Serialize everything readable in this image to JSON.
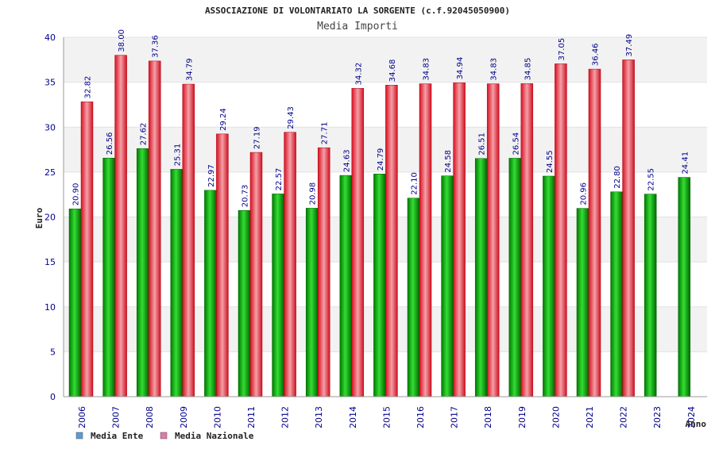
{
  "chart_data": {
    "type": "bar",
    "title": "ASSOCIAZIONE DI VOLONTARIATO LA SORGENTE (c.f.92045050900)",
    "subtitle": "Media Importi",
    "ylabel": "Euro",
    "xlabel": "Anno",
    "ylim": [
      0,
      40
    ],
    "yticks": [
      0,
      5,
      10,
      15,
      20,
      25,
      30,
      35,
      40
    ],
    "categories": [
      "2006",
      "2007",
      "2008",
      "2009",
      "2010",
      "2011",
      "2012",
      "2013",
      "2014",
      "2015",
      "2016",
      "2017",
      "2018",
      "2019",
      "2020",
      "2021",
      "2022",
      "2023",
      "2024"
    ],
    "series": [
      {
        "name": "Media Ente",
        "color": "#00b000",
        "legend_color": "#5b9bd5",
        "values": [
          20.9,
          26.56,
          27.62,
          25.31,
          22.97,
          20.73,
          22.57,
          20.98,
          24.63,
          24.79,
          22.1,
          24.58,
          26.51,
          26.54,
          24.55,
          20.96,
          22.8,
          22.55,
          24.41
        ],
        "labels": [
          "20.90",
          "26.56",
          "27.62",
          "25.31",
          "22.97",
          "20.73",
          "22.57",
          "20.98",
          "24.63",
          "24.79",
          "22.10",
          "24.58",
          "26.51",
          "26.54",
          "24.55",
          "20.96",
          "22.80",
          "22.55",
          "24.41"
        ]
      },
      {
        "name": "Media Nazionale",
        "color": "#e8202a",
        "legend_color": "#e07aa8",
        "values": [
          32.82,
          38.0,
          37.36,
          34.79,
          29.24,
          27.19,
          29.43,
          27.71,
          34.32,
          34.68,
          34.83,
          34.94,
          34.83,
          34.85,
          37.05,
          36.46,
          37.49,
          null,
          null
        ],
        "labels": [
          "32.82",
          "38.00",
          "37.36",
          "34.79",
          "29.24",
          "27.19",
          "29.43",
          "27.71",
          "34.32",
          "34.68",
          "34.83",
          "34.94",
          "34.83",
          "34.85",
          "37.05",
          "36.46",
          "37.49",
          null,
          null
        ]
      }
    ],
    "grid": true,
    "legend_position": "bottom-left"
  }
}
